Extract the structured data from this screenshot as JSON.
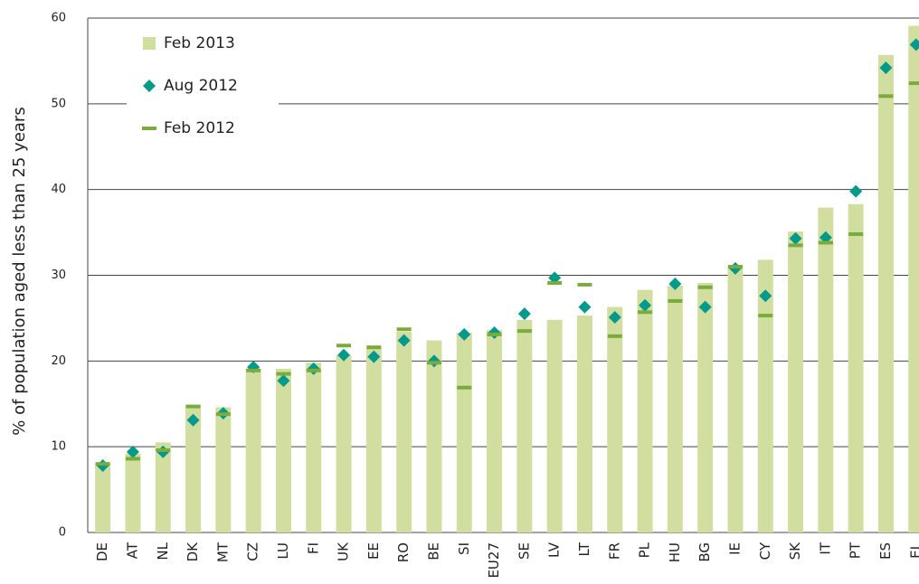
{
  "chart_data": {
    "type": "bar",
    "y_label": "% of population aged less than 25 years",
    "categories": [
      "DE",
      "AT",
      "NL",
      "DK",
      "MT",
      "CZ",
      "LU",
      "FI",
      "UK",
      "EE",
      "RO",
      "BE",
      "SI",
      "EU27",
      "SE",
      "LV",
      "LT",
      "FR",
      "PL",
      "HU",
      "BG",
      "IE",
      "CY",
      "SK",
      "IT",
      "PT",
      "ES",
      "EL"
    ],
    "series": [
      {
        "name": "Feb 2013",
        "color": "#d1dea0",
        "marker": "bar",
        "values": [
          8.0,
          9.2,
          10.5,
          14.8,
          14.6,
          19.1,
          19.1,
          19.8,
          20.7,
          21.5,
          23.4,
          22.4,
          23.3,
          23.6,
          24.8,
          24.8,
          25.3,
          26.3,
          28.3,
          28.8,
          29.1,
          31.1,
          31.8,
          35.1,
          37.9,
          38.3,
          55.7,
          59.1
        ]
      },
      {
        "name": "Aug 2012",
        "color": "#009a8a",
        "marker": "diamond",
        "values": [
          7.8,
          9.4,
          9.4,
          13.1,
          13.9,
          19.3,
          17.7,
          19.1,
          20.7,
          20.5,
          22.4,
          20.0,
          23.1,
          23.3,
          25.5,
          29.7,
          26.3,
          25.1,
          26.5,
          29.0,
          26.3,
          30.8,
          27.6,
          34.3,
          34.4,
          39.8,
          54.2,
          56.9
        ]
      },
      {
        "name": "Feb 2012",
        "color": "#7aab3c",
        "marker": "dash",
        "values": [
          8.0,
          8.6,
          9.6,
          14.7,
          13.8,
          18.9,
          18.5,
          18.9,
          21.8,
          21.6,
          23.7,
          19.8,
          16.9,
          23.1,
          23.5,
          29.1,
          28.9,
          22.9,
          25.7,
          27.0,
          28.6,
          31.0,
          25.3,
          33.5,
          33.8,
          34.8,
          50.9,
          52.4
        ]
      }
    ],
    "ylim": [
      0,
      60
    ],
    "yticks": [
      0,
      10,
      20,
      30,
      40,
      50,
      60
    ],
    "grid": true,
    "legend": "top-left"
  }
}
